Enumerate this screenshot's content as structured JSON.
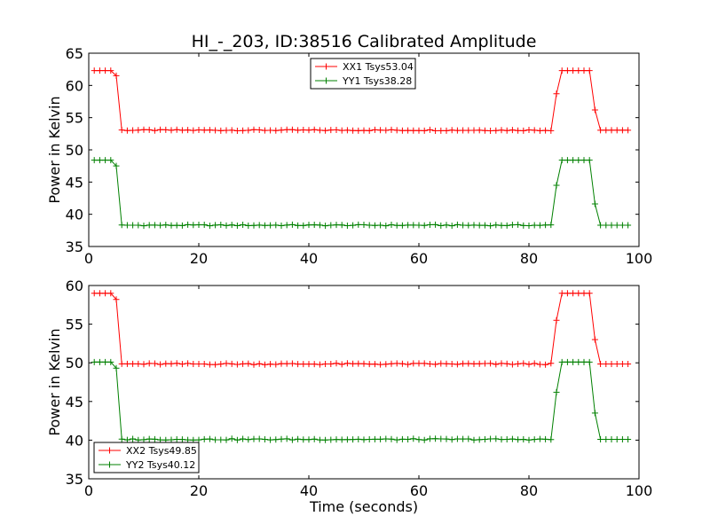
{
  "figure": {
    "title": "HI_-_203, ID:38516 Calibrated Amplitude",
    "xlabel": "Time (seconds)"
  },
  "chart_data": [
    {
      "type": "line",
      "ylabel": "Power in Kelvin",
      "xlim": [
        0,
        100
      ],
      "ylim": [
        35,
        65
      ],
      "xticks": [
        0,
        20,
        40,
        60,
        80,
        100
      ],
      "yticks": [
        35,
        40,
        45,
        50,
        55,
        60,
        65
      ],
      "legend_position": "top-center",
      "grid": false,
      "series": [
        {
          "name": "XX1 Tsys53.04",
          "color": "#ff0000",
          "base": 53.05,
          "high": 62.3,
          "values_on_flanks": {
            "t5": 61.5,
            "t85": 58.7,
            "t92": 56.2
          }
        },
        {
          "name": "YY1 Tsys38.28",
          "color": "#008000",
          "base": 38.3,
          "high": 48.4,
          "values_on_flanks": {
            "t5": 47.5,
            "t85": 44.5,
            "t92": 41.6
          }
        }
      ]
    },
    {
      "type": "line",
      "ylabel": "Power in Kelvin",
      "xlim": [
        0,
        100
      ],
      "ylim": [
        35,
        60
      ],
      "xticks": [
        0,
        20,
        40,
        60,
        80,
        100
      ],
      "yticks": [
        35,
        40,
        45,
        50,
        55,
        60
      ],
      "legend_position": "bottom-left",
      "grid": false,
      "series": [
        {
          "name": "XX2 Tsys49.85",
          "color": "#ff0000",
          "base": 49.85,
          "high": 59.0,
          "values_on_flanks": {
            "t5": 58.2,
            "t85": 55.5,
            "t92": 53.0
          }
        },
        {
          "name": "YY2 Tsys40.12",
          "color": "#008000",
          "base": 40.1,
          "high": 50.1,
          "values_on_flanks": {
            "t5": 49.3,
            "t85": 46.2,
            "t92": 43.5
          }
        }
      ]
    }
  ]
}
